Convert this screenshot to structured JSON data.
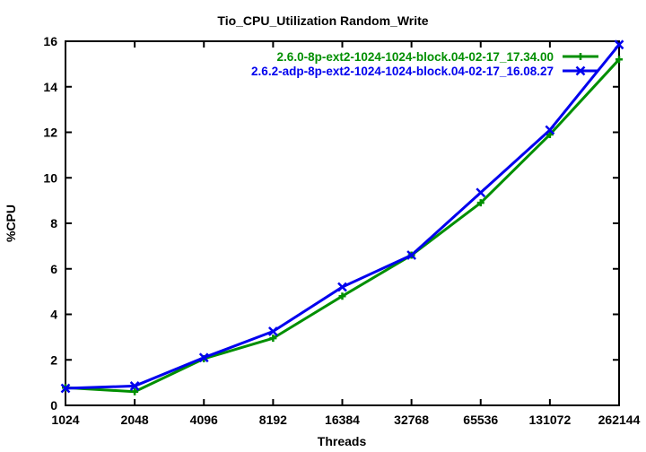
{
  "title": "Tio_CPU_Utilization Random_Write",
  "axes": {
    "xlabel": "Threads",
    "ylabel": "%CPU"
  },
  "colors": {
    "series1": "#008f00",
    "series2": "#0000ee",
    "axis": "#000000",
    "background": "#ffffff"
  },
  "chart_data": {
    "type": "line",
    "title": "Tio_CPU_Utilization Random_Write",
    "xlabel": "Threads",
    "ylabel": "%CPU",
    "x_scale": "log2",
    "categories": [
      "1024",
      "2048",
      "4096",
      "8192",
      "16384",
      "32768",
      "65536",
      "131072",
      "262144"
    ],
    "y_ticks": [
      0,
      2,
      4,
      6,
      8,
      10,
      12,
      14,
      16
    ],
    "ylim": [
      0,
      16
    ],
    "grid": false,
    "legend_position": "top-right-inside",
    "series": [
      {
        "name": "2.6.0-8p-ext2-1024-1024-block.04-02-17_17.34.00",
        "color": "#008f00",
        "marker": "plus",
        "values": [
          0.78,
          0.6,
          2.05,
          2.95,
          4.8,
          6.6,
          8.9,
          11.9,
          15.2
        ]
      },
      {
        "name": "2.6.2-adp-8p-ext2-1024-1024-block.04-02-17_16.08.27",
        "color": "#0000ee",
        "marker": "x",
        "values": [
          0.75,
          0.85,
          2.1,
          3.25,
          5.2,
          6.6,
          9.35,
          12.1,
          15.85
        ]
      }
    ]
  }
}
